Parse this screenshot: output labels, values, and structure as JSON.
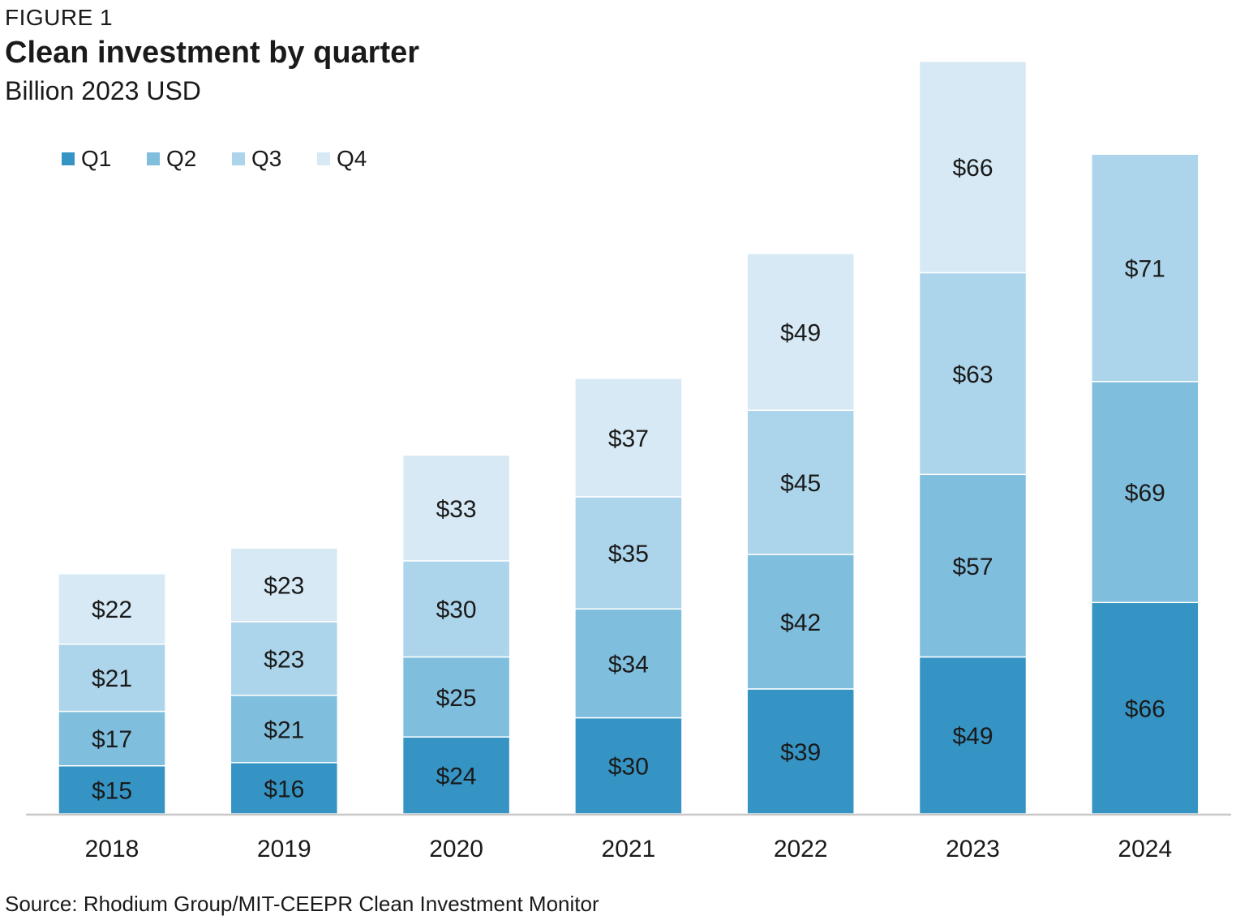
{
  "figure_label": "FIGURE 1",
  "title": "Clean investment by quarter",
  "subtitle": "Billion 2023 USD",
  "source": "Source: Rhodium Group/MIT-CEEPR Clean Investment Monitor",
  "colors": {
    "Q1": "#3594c4",
    "Q2": "#80bede",
    "Q3": "#acd4ea",
    "Q4": "#d6e9f4",
    "axis": "#c8c8c8",
    "text": "#1a1a1a"
  },
  "chart_data": {
    "type": "bar",
    "stacked": true,
    "title": "Clean investment by quarter",
    "ylabel": "Billion 2023 USD",
    "categories": [
      "2018",
      "2019",
      "2020",
      "2021",
      "2022",
      "2023",
      "2024"
    ],
    "series": [
      {
        "name": "Q1",
        "values": [
          15,
          16,
          24,
          30,
          39,
          49,
          66
        ],
        "labels": [
          "$15",
          "$16",
          "$24",
          "$30",
          "$39",
          "$49",
          "$66"
        ]
      },
      {
        "name": "Q2",
        "values": [
          17,
          21,
          25,
          34,
          42,
          57,
          69
        ],
        "labels": [
          "$17",
          "$21",
          "$25",
          "$34",
          "$42",
          "$57",
          "$69"
        ]
      },
      {
        "name": "Q3",
        "values": [
          21,
          23,
          30,
          35,
          45,
          63,
          71
        ],
        "labels": [
          "$21",
          "$23",
          "$30",
          "$35",
          "$45",
          "$63",
          "$71"
        ]
      },
      {
        "name": "Q4",
        "values": [
          22,
          23,
          33,
          37,
          49,
          66,
          null
        ],
        "labels": [
          "$22",
          "$23",
          "$33",
          "$37",
          "$49",
          "$66",
          null
        ]
      }
    ],
    "legend_position": "top-left",
    "grid": false
  }
}
